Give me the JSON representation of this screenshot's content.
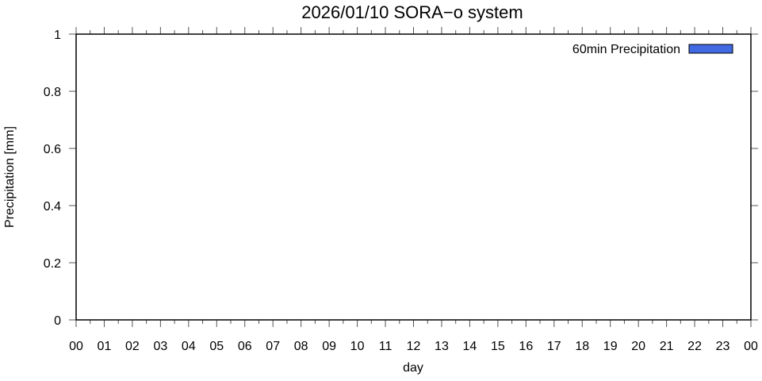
{
  "chart_data": {
    "type": "bar",
    "title": "2026/01/10 SORA−o system",
    "xlabel": "day",
    "ylabel": "Precipitation [mm]",
    "ylim": [
      0,
      1
    ],
    "yticks": [
      "0",
      "0.2",
      "0.4",
      "0.6",
      "0.8",
      "1"
    ],
    "ytick_values": [
      0,
      0.2,
      0.4,
      0.6,
      0.8,
      1
    ],
    "xtick_labels": [
      "00",
      "01",
      "02",
      "03",
      "04",
      "05",
      "06",
      "07",
      "08",
      "09",
      "10",
      "11",
      "12",
      "13",
      "14",
      "15",
      "16",
      "17",
      "18",
      "19",
      "20",
      "21",
      "22",
      "23",
      "00"
    ],
    "xlim_hours": [
      0,
      24
    ],
    "minor_xticks_per_hour": 2,
    "grid": false,
    "legend_placement": "top-right",
    "series": [
      {
        "name": "60min Precipitation",
        "color": "#4169e1",
        "values": []
      }
    ]
  }
}
